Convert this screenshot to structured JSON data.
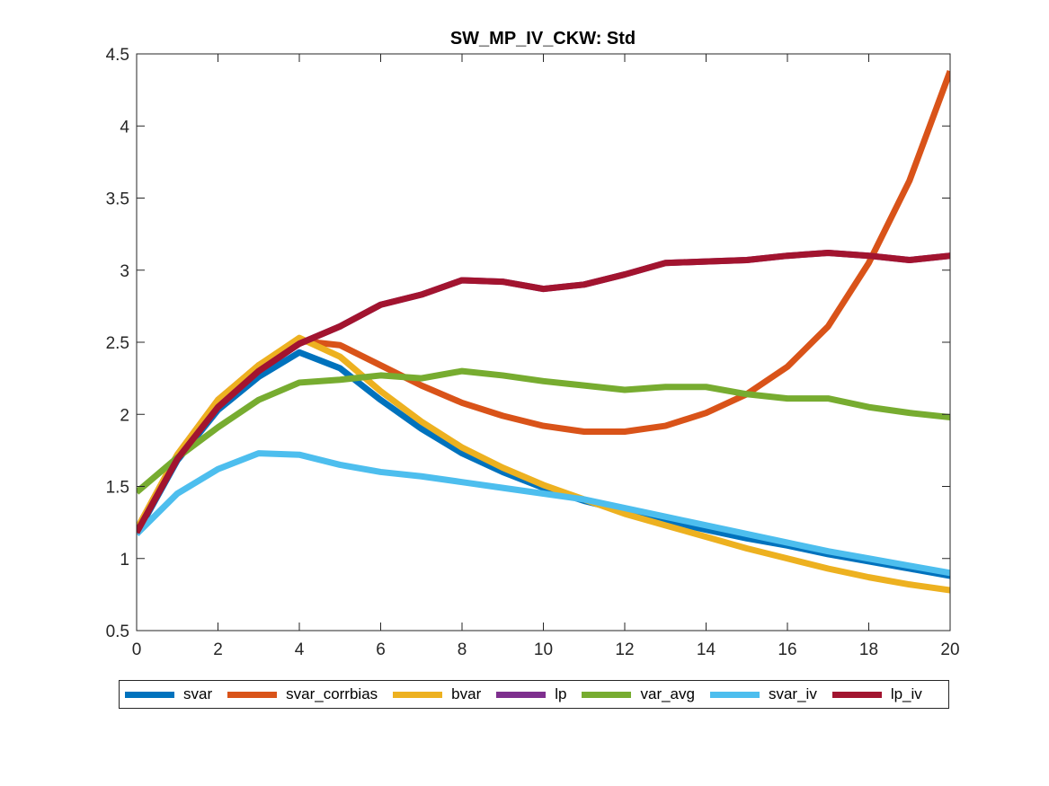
{
  "chart_data": {
    "type": "line",
    "title": "SW_MP_IV_CKW: Std",
    "xlabel": "",
    "ylabel": "",
    "xlim": [
      0,
      20
    ],
    "ylim": [
      0.5,
      4.5
    ],
    "xticks": [
      0,
      2,
      4,
      6,
      8,
      10,
      12,
      14,
      16,
      18,
      20
    ],
    "yticks": [
      0.5,
      1,
      1.5,
      2,
      2.5,
      3,
      3.5,
      4,
      4.5
    ],
    "xtick_labels": [
      "0",
      "2",
      "4",
      "6",
      "8",
      "10",
      "12",
      "14",
      "16",
      "18",
      "20"
    ],
    "ytick_labels": [
      "0.5",
      "1",
      "1.5",
      "2",
      "2.5",
      "3",
      "3.5",
      "4",
      "4.5"
    ],
    "grid": false,
    "legend_position": "bottom-outside",
    "x": [
      0,
      1,
      2,
      3,
      4,
      5,
      6,
      7,
      8,
      9,
      10,
      11,
      12,
      13,
      14,
      15,
      16,
      17,
      18,
      19,
      20
    ],
    "series": [
      {
        "name": "svar",
        "color": "#0072BD",
        "values": [
          1.17,
          1.68,
          2.03,
          2.26,
          2.43,
          2.32,
          2.1,
          1.9,
          1.73,
          1.6,
          1.49,
          1.4,
          1.33,
          1.26,
          1.2,
          1.14,
          1.09,
          1.03,
          0.98,
          0.93,
          0.88
        ]
      },
      {
        "name": "svar_corrbias",
        "color": "#D95319",
        "values": [
          1.2,
          1.72,
          2.1,
          2.34,
          2.51,
          2.48,
          2.34,
          2.2,
          2.08,
          1.99,
          1.92,
          1.88,
          1.88,
          1.92,
          2.01,
          2.14,
          2.33,
          2.61,
          3.05,
          3.62,
          4.38
        ]
      },
      {
        "name": "bvar",
        "color": "#EDB120",
        "values": [
          1.2,
          1.72,
          2.1,
          2.34,
          2.53,
          2.4,
          2.16,
          1.95,
          1.77,
          1.63,
          1.51,
          1.41,
          1.31,
          1.23,
          1.15,
          1.07,
          1.0,
          0.93,
          0.87,
          0.82,
          0.78
        ]
      },
      {
        "name": "lp",
        "color": "#7E2F8E",
        "values": [
          1.18,
          1.69,
          2.05,
          2.3,
          2.49,
          2.61,
          2.76,
          2.83,
          2.93,
          2.92,
          2.87,
          2.9,
          2.97,
          3.05,
          3.06,
          3.07,
          3.1,
          3.12,
          3.1,
          3.07,
          3.1
        ]
      },
      {
        "name": "var_avg",
        "color": "#77AC30",
        "values": [
          1.46,
          1.7,
          1.91,
          2.1,
          2.22,
          2.24,
          2.27,
          2.25,
          2.3,
          2.27,
          2.23,
          2.2,
          2.17,
          2.19,
          2.19,
          2.14,
          2.11,
          2.11,
          2.05,
          2.01,
          1.98
        ]
      },
      {
        "name": "svar_iv",
        "color": "#4DBEEE",
        "values": [
          1.17,
          1.45,
          1.62,
          1.73,
          1.72,
          1.65,
          1.6,
          1.57,
          1.53,
          1.49,
          1.45,
          1.41,
          1.35,
          1.29,
          1.23,
          1.17,
          1.11,
          1.05,
          1.0,
          0.95,
          0.9
        ]
      },
      {
        "name": "lp_iv",
        "color": "#A2142F",
        "values": [
          1.18,
          1.69,
          2.05,
          2.3,
          2.49,
          2.61,
          2.76,
          2.83,
          2.93,
          2.92,
          2.87,
          2.9,
          2.97,
          3.05,
          3.06,
          3.07,
          3.1,
          3.12,
          3.1,
          3.07,
          3.1
        ]
      }
    ]
  }
}
